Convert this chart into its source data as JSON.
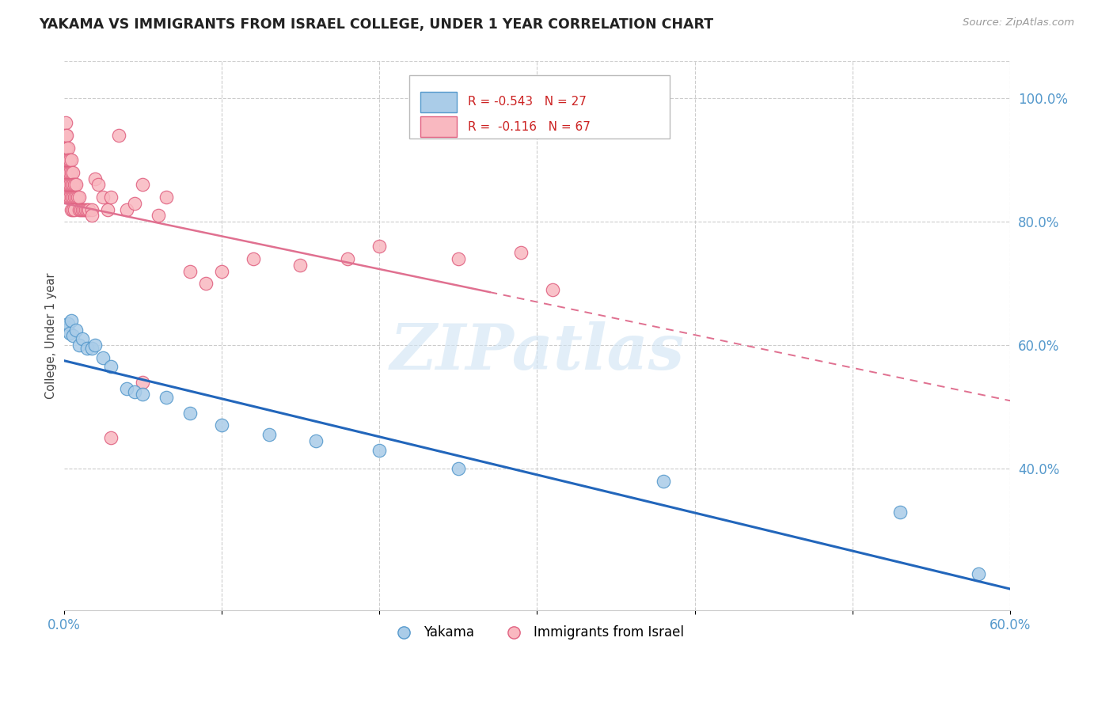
{
  "title": "YAKAMA VS IMMIGRANTS FROM ISRAEL COLLEGE, UNDER 1 YEAR CORRELATION CHART",
  "source": "Source: ZipAtlas.com",
  "ylabel": "College, Under 1 year",
  "legend_labels": [
    "Yakama",
    "Immigrants from Israel"
  ],
  "xlim": [
    0.0,
    0.6
  ],
  "ylim": [
    0.17,
    1.06
  ],
  "right_yticks": [
    0.4,
    0.6,
    0.8,
    1.0
  ],
  "right_yticklabels": [
    "40.0%",
    "60.0%",
    "80.0%",
    "100.0%"
  ],
  "xticks": [
    0.0,
    0.1,
    0.2,
    0.3,
    0.4,
    0.5,
    0.6
  ],
  "xticklabels": [
    "0.0%",
    "",
    "",
    "",
    "",
    "",
    "60.0%"
  ],
  "grid_color": "#cccccc",
  "background_color": "#ffffff",
  "watermark": "ZIPatlas",
  "yakama_color": "#aacce8",
  "yakama_edge": "#5599cc",
  "israel_color": "#f9b8c0",
  "israel_edge": "#e06080",
  "yakama_line_color": "#2266bb",
  "israel_line_color": "#e07090",
  "yakama_x": [
    0.001,
    0.002,
    0.003,
    0.004,
    0.005,
    0.006,
    0.008,
    0.01,
    0.012,
    0.015,
    0.018,
    0.02,
    0.025,
    0.03,
    0.04,
    0.045,
    0.05,
    0.065,
    0.08,
    0.1,
    0.13,
    0.16,
    0.2,
    0.25,
    0.38,
    0.53,
    0.58
  ],
  "yakama_y": [
    0.63,
    0.625,
    0.635,
    0.62,
    0.64,
    0.615,
    0.625,
    0.6,
    0.61,
    0.595,
    0.595,
    0.6,
    0.58,
    0.565,
    0.53,
    0.525,
    0.52,
    0.515,
    0.49,
    0.47,
    0.455,
    0.445,
    0.43,
    0.4,
    0.38,
    0.33,
    0.23
  ],
  "israel_x": [
    0.001,
    0.001,
    0.001,
    0.001,
    0.001,
    0.001,
    0.002,
    0.002,
    0.002,
    0.002,
    0.002,
    0.003,
    0.003,
    0.003,
    0.003,
    0.003,
    0.004,
    0.004,
    0.004,
    0.004,
    0.005,
    0.005,
    0.005,
    0.005,
    0.005,
    0.006,
    0.006,
    0.006,
    0.006,
    0.007,
    0.007,
    0.007,
    0.008,
    0.008,
    0.009,
    0.01,
    0.01,
    0.011,
    0.012,
    0.013,
    0.014,
    0.015,
    0.016,
    0.018,
    0.018,
    0.02,
    0.022,
    0.025,
    0.028,
    0.03,
    0.035,
    0.04,
    0.045,
    0.05,
    0.06,
    0.065,
    0.08,
    0.09,
    0.1,
    0.12,
    0.15,
    0.18,
    0.2,
    0.25,
    0.29,
    0.31,
    0.05,
    0.03
  ],
  "israel_y": [
    0.96,
    0.94,
    0.92,
    0.9,
    0.88,
    0.86,
    0.94,
    0.92,
    0.9,
    0.88,
    0.86,
    0.92,
    0.9,
    0.88,
    0.86,
    0.84,
    0.9,
    0.88,
    0.86,
    0.84,
    0.9,
    0.88,
    0.86,
    0.84,
    0.82,
    0.88,
    0.86,
    0.84,
    0.82,
    0.86,
    0.84,
    0.82,
    0.86,
    0.84,
    0.84,
    0.84,
    0.82,
    0.82,
    0.82,
    0.82,
    0.82,
    0.82,
    0.82,
    0.82,
    0.81,
    0.87,
    0.86,
    0.84,
    0.82,
    0.84,
    0.94,
    0.82,
    0.83,
    0.86,
    0.81,
    0.84,
    0.72,
    0.7,
    0.72,
    0.74,
    0.73,
    0.74,
    0.76,
    0.74,
    0.75,
    0.69,
    0.54,
    0.45
  ],
  "israel_line_xend": 0.32
}
